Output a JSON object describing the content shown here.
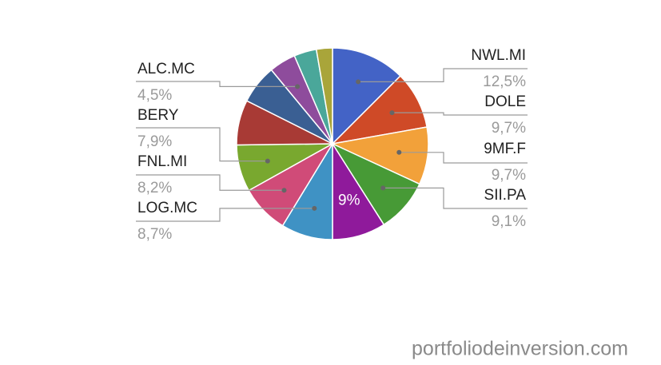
{
  "chart_data": {
    "type": "pie",
    "categories": [
      "NWL.MI",
      "DOLE",
      "9MF.F",
      "SII.PA",
      null,
      "LOG.MC",
      "FNL.MI",
      "BERY",
      null,
      null,
      "ALC.MC",
      null,
      null
    ],
    "values": [
      12.5,
      9.7,
      9.7,
      9.1,
      9,
      8.7,
      8.2,
      7.9,
      7.6,
      6.6,
      4.5,
      3.8,
      2.7
    ],
    "value_labels": [
      "12,5%",
      "9,7%",
      "9,7%",
      "9,1%",
      "9%",
      "8,7%",
      "8,2%",
      "7,9%",
      null,
      null,
      "4,5%",
      null,
      null
    ],
    "colors": [
      "#4363c6",
      "#cf4a27",
      "#f2a13a",
      "#479a36",
      "#8f1a9b",
      "#3f92c4",
      "#d04b78",
      "#79a82f",
      "#a83a35",
      "#3a5f93",
      "#8e4c9c",
      "#4aa79a",
      "#a9a53a"
    ],
    "watermark": "portfoliodeinversion.com"
  }
}
